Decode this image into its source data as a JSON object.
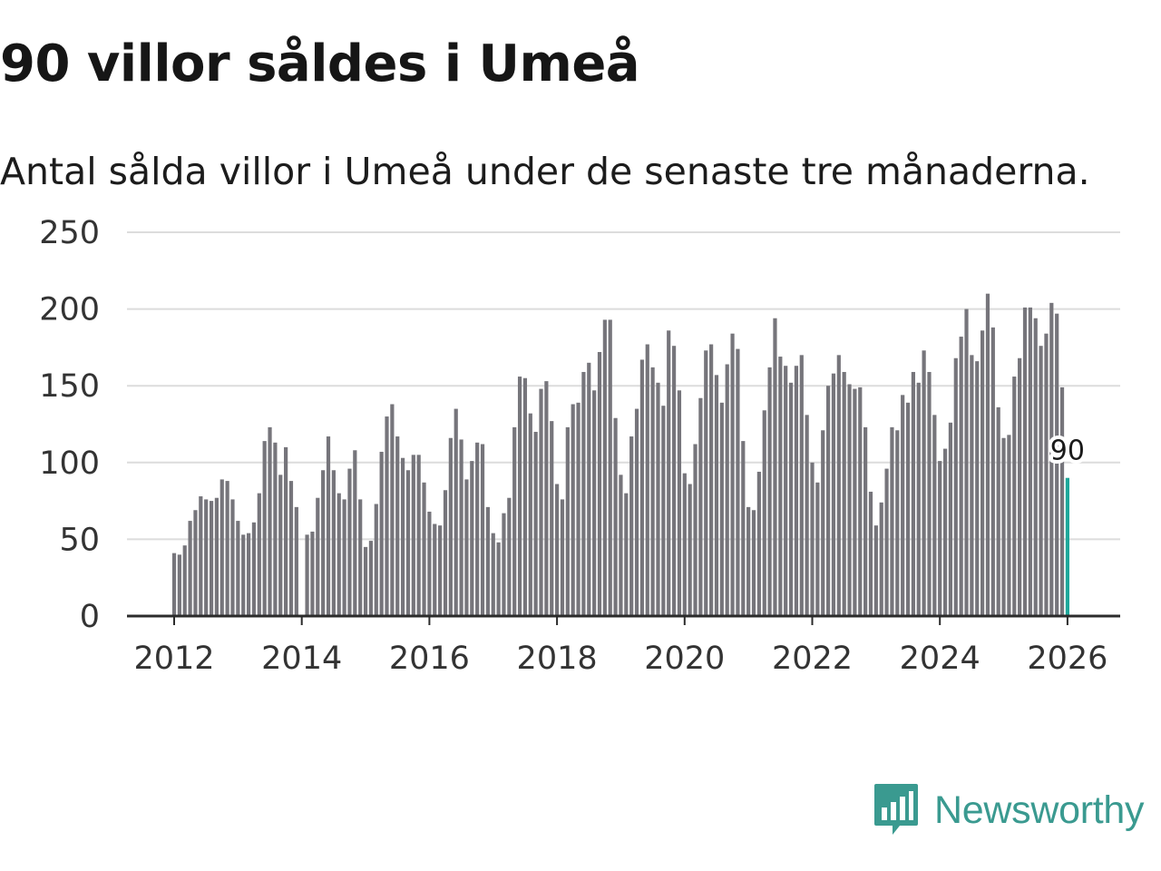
{
  "title": "90 villor såldes i Umeå",
  "subtitle": "Antal sålda villor i Umeå under de senaste tre månaderna.",
  "logo": {
    "text": "Newsworthy",
    "icon": "newsworthy-logo-icon",
    "color": "#3a9a90"
  },
  "colors": {
    "bar": "#76757b",
    "highlight": "#1ea79a",
    "grid": "#dcdcdc",
    "axis": "#2b2b2b"
  },
  "chart_data": {
    "type": "bar",
    "title": "90 villor såldes i Umeå",
    "subtitle": "Antal sålda villor i Umeå under de senaste tre månaderna.",
    "xlabel": "",
    "ylabel": "",
    "ylim": [
      0,
      250
    ],
    "yticks": [
      0,
      50,
      100,
      150,
      200,
      250
    ],
    "grid": true,
    "x_start": {
      "year": 2012,
      "month": 1
    },
    "xticks": [
      "2012",
      "2014",
      "2016",
      "2018",
      "2020",
      "2022",
      "2024",
      "2026"
    ],
    "highlight_last": true,
    "highlight_label": "90",
    "values": [
      41,
      40,
      46,
      62,
      69,
      78,
      76,
      75,
      77,
      89,
      88,
      76,
      62,
      53,
      54,
      61,
      80,
      114,
      123,
      113,
      92,
      110,
      88,
      71,
      null,
      53,
      55,
      77,
      95,
      117,
      95,
      80,
      76,
      96,
      108,
      76,
      45,
      49,
      73,
      107,
      130,
      138,
      117,
      103,
      95,
      105,
      105,
      87,
      68,
      60,
      59,
      82,
      116,
      135,
      115,
      89,
      101,
      113,
      112,
      71,
      54,
      48,
      67,
      77,
      123,
      156,
      155,
      132,
      120,
      148,
      153,
      127,
      86,
      76,
      123,
      138,
      139,
      159,
      165,
      147,
      172,
      193,
      193,
      129,
      92,
      80,
      117,
      135,
      167,
      177,
      162,
      152,
      137,
      186,
      176,
      147,
      93,
      86,
      112,
      142,
      173,
      177,
      157,
      139,
      164,
      184,
      174,
      114,
      71,
      69,
      94,
      134,
      162,
      194,
      169,
      163,
      152,
      163,
      170,
      131,
      100,
      87,
      121,
      150,
      158,
      170,
      159,
      151,
      148,
      149,
      123,
      81,
      59,
      74,
      96,
      123,
      121,
      144,
      139,
      159,
      152,
      173,
      159,
      131,
      101,
      109,
      126,
      168,
      182,
      200,
      170,
      166,
      186,
      210,
      188,
      136,
      116,
      118,
      156,
      168,
      201,
      201,
      194,
      176,
      184,
      204,
      197,
      149,
      90
    ]
  }
}
